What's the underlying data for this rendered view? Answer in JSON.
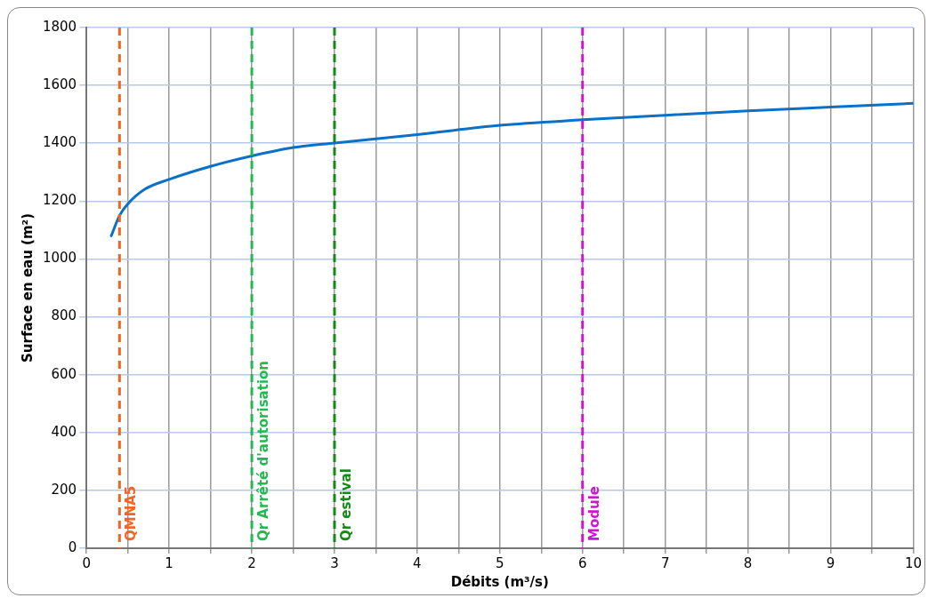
{
  "chart_data": {
    "type": "line",
    "xlabel": "Débits (m³/s)",
    "ylabel": "Surface en eau (m²)",
    "xlim": [
      0,
      10
    ],
    "ylim": [
      0,
      1800
    ],
    "xticks": [
      0,
      {
        "value": 0.5,
        "label": null
      },
      1,
      {
        "value": 1.5,
        "label": null
      },
      2,
      {
        "value": 2.5,
        "label": null
      },
      3,
      {
        "value": 3.5,
        "label": null
      },
      4,
      {
        "value": 4.5,
        "label": null
      },
      5,
      {
        "value": 5.5,
        "label": null
      },
      6,
      {
        "value": 6.5,
        "label": null
      },
      7,
      {
        "value": 7.5,
        "label": null
      },
      8,
      {
        "value": 8.5,
        "label": null
      },
      9,
      {
        "value": 9.5,
        "label": null
      },
      10
    ],
    "yticks": [
      0,
      200,
      400,
      600,
      800,
      1000,
      1200,
      1400,
      1600,
      1800
    ],
    "grid": true,
    "legend": false,
    "marker": "none",
    "line_style": "solid",
    "series": [
      {
        "color": "#0a70c8",
        "x": [
          0.3,
          0.4,
          0.5,
          0.7,
          1,
          1.5,
          2,
          2.5,
          3,
          4,
          5,
          6,
          7,
          8,
          9,
          10
        ],
        "values": [
          1080,
          1150,
          1190,
          1240,
          1275,
          1320,
          1356,
          1385,
          1401,
          1430,
          1462,
          1481,
          1497,
          1512,
          1525,
          1538
        ]
      }
    ],
    "ref_lines": [
      {
        "axis": "x",
        "value": 0.4,
        "label": "QMNA5",
        "color": "#f26522",
        "line_style": "dashed"
      },
      {
        "axis": "x",
        "value": 2,
        "label": "Qr Arrêté d'autorisation",
        "color": "#22b950",
        "line_style": "dashed"
      },
      {
        "axis": "x",
        "value": 3,
        "label": "Qr estival",
        "color": "#138a13",
        "line_style": "dashed"
      },
      {
        "axis": "x",
        "value": 6,
        "label": "Module",
        "color": "#d014d0",
        "line_style": "dashed"
      }
    ]
  }
}
